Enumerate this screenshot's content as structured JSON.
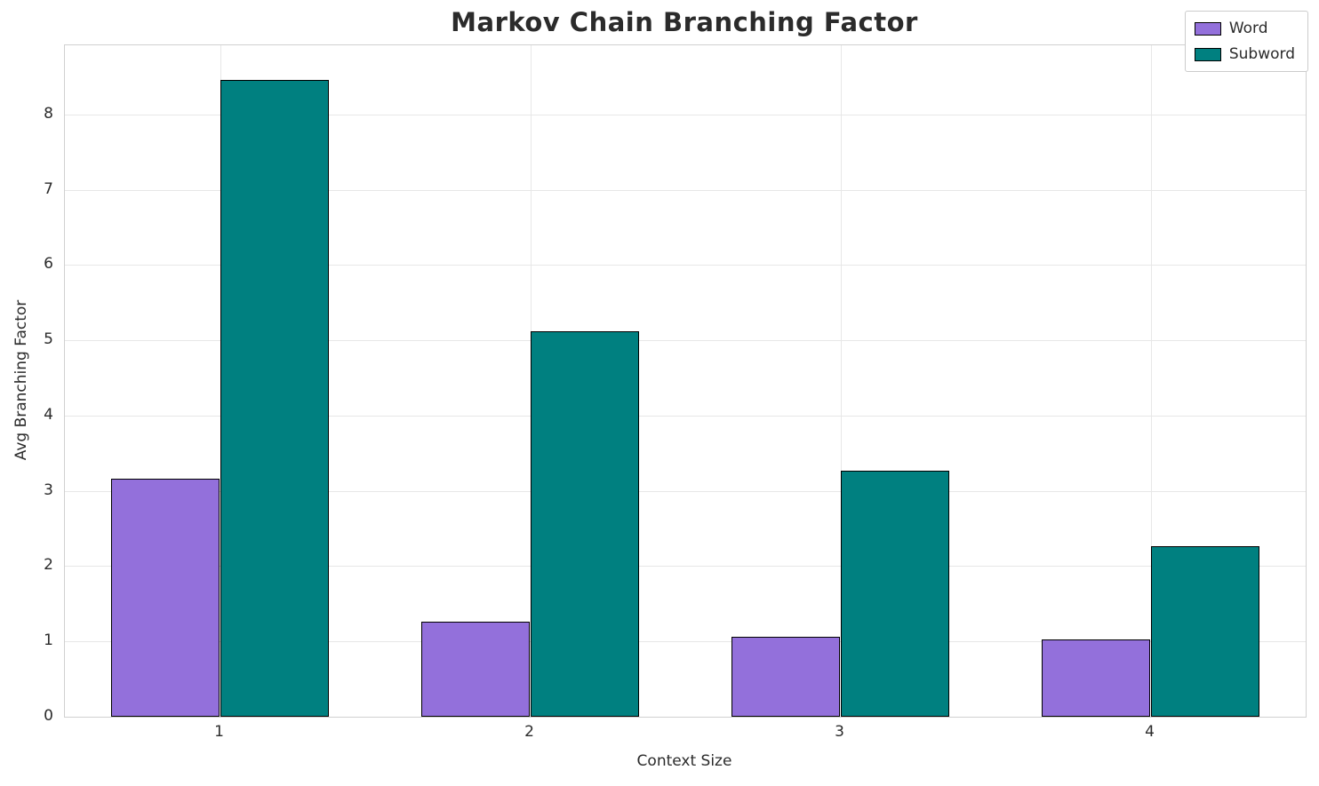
{
  "chart_data": {
    "type": "bar",
    "title": "Markov Chain Branching Factor",
    "xlabel": "Context Size",
    "ylabel": "Avg Branching Factor",
    "categories": [
      "1",
      "2",
      "3",
      "4"
    ],
    "series": [
      {
        "name": "Word",
        "color": "#9370DB",
        "values": [
          3.16,
          1.26,
          1.06,
          1.03
        ]
      },
      {
        "name": "Subword",
        "color": "#008080",
        "values": [
          8.46,
          5.12,
          3.27,
          2.26
        ]
      }
    ],
    "ylim": [
      0,
      8.92
    ],
    "yticks": [
      0,
      1,
      2,
      3,
      4,
      5,
      6,
      7,
      8
    ],
    "grid": true,
    "legend_position": "upper right",
    "bar_edge_color": "#000000",
    "bar_group_width_fraction": 0.35
  }
}
